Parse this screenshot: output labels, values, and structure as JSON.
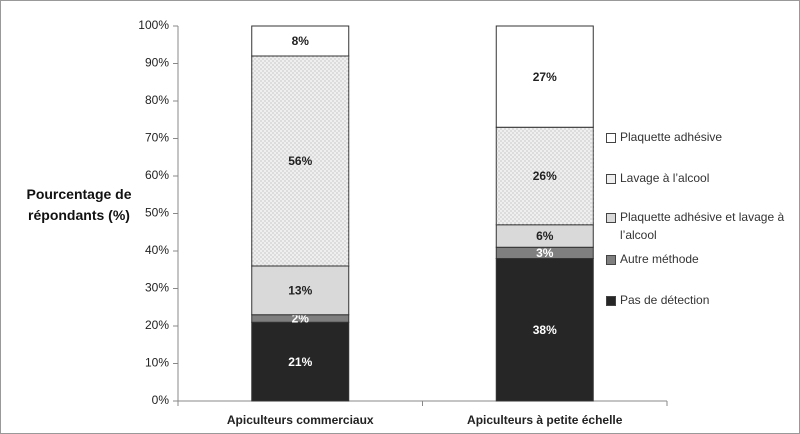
{
  "chart_data": {
    "type": "stacked_bar",
    "y_label": "Pourcentage de répondants (%)",
    "categories": [
      "Apiculteurs commerciaux",
      "Apiculteurs à petite échelle"
    ],
    "series": [
      {
        "name": "Pas de détection",
        "color": "#262626",
        "values": [
          21,
          38
        ],
        "value_labels": [
          "21%",
          "38%"
        ]
      },
      {
        "name": "Autre méthode",
        "color": "#7f7f7f",
        "values": [
          2,
          3
        ],
        "value_labels": [
          "2%",
          "3%"
        ]
      },
      {
        "name": "Plaquette adhésive et  lavage à l’alcool",
        "color": "#d9d9d9",
        "values": [
          13,
          6
        ],
        "value_labels": [
          "13%",
          "6%"
        ]
      },
      {
        "name": "Lavage à l’alcool",
        "color": "#efefef",
        "values": [
          56,
          26
        ],
        "value_labels": [
          "56%",
          "26%"
        ]
      },
      {
        "name": "Plaquette adhésive",
        "color": "#ffffff",
        "values": [
          8,
          27
        ],
        "value_labels": [
          "8%",
          "27%"
        ]
      }
    ],
    "ylim": [
      0,
      100
    ],
    "yticks": [
      {
        "value": 0,
        "label": "0%"
      },
      {
        "value": 10,
        "label": "10%"
      },
      {
        "value": 20,
        "label": "20%"
      },
      {
        "value": 30,
        "label": "30%"
      },
      {
        "value": 40,
        "label": "40%"
      },
      {
        "value": 50,
        "label": "50%"
      },
      {
        "value": 60,
        "label": "60%"
      },
      {
        "value": 70,
        "label": "70%"
      },
      {
        "value": 80,
        "label": "80%"
      },
      {
        "value": 90,
        "label": "90%"
      },
      {
        "value": 100,
        "label": "100%"
      }
    ],
    "grid": false
  }
}
